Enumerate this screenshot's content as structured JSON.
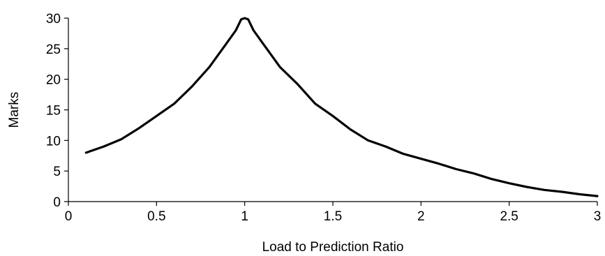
{
  "chart_data": {
    "type": "line",
    "title": "",
    "xlabel": "Load to Prediction Ratio",
    "ylabel": "Marks",
    "xlim": [
      0,
      3
    ],
    "ylim": [
      0,
      30
    ],
    "x_ticks": [
      0,
      0.5,
      1,
      1.5,
      2,
      2.5,
      3
    ],
    "x_tick_labels": [
      "0",
      "0.5",
      "1",
      "1.5",
      "2",
      "2.5",
      "3"
    ],
    "y_ticks": [
      0,
      5,
      10,
      15,
      20,
      25,
      30
    ],
    "y_tick_labels": [
      "0",
      "5",
      "10",
      "15",
      "20",
      "25",
      "30"
    ],
    "grid": false,
    "legend": "none",
    "series": [
      {
        "color": "#000000",
        "x": [
          0.1,
          0.2,
          0.3,
          0.4,
          0.5,
          0.6,
          0.7,
          0.8,
          0.9,
          0.95,
          0.98,
          1.0,
          1.02,
          1.05,
          1.1,
          1.2,
          1.3,
          1.4,
          1.5,
          1.6,
          1.7,
          1.8,
          1.9,
          2.0,
          2.1,
          2.2,
          2.3,
          2.4,
          2.5,
          2.6,
          2.7,
          2.8,
          2.9,
          3.0
        ],
        "y": [
          8.0,
          9.0,
          10.2,
          12.0,
          14.0,
          16.0,
          18.8,
          22.0,
          26.0,
          28.0,
          29.8,
          30.0,
          29.8,
          28.0,
          26.0,
          22.0,
          19.2,
          16.0,
          14.0,
          11.8,
          10.0,
          9.0,
          7.8,
          7.0,
          6.2,
          5.3,
          4.6,
          3.7,
          3.0,
          2.4,
          1.9,
          1.6,
          1.2,
          0.9
        ]
      }
    ]
  }
}
